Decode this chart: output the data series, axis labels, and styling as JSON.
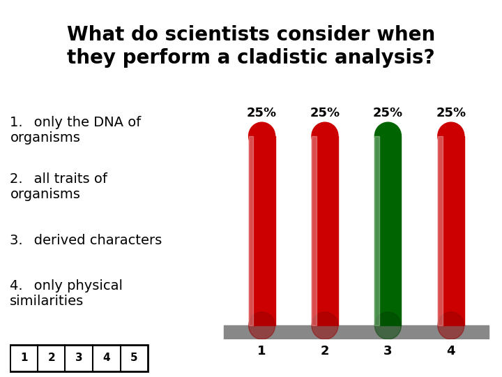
{
  "title_line1": "What do scientists consider when",
  "title_line2": "they perform a cladistic analysis?",
  "options": [
    "only the DNA of\norganisms",
    "all traits of\norganisms",
    "derived characters",
    "only physical\nsimilarities"
  ],
  "categories": [
    "1",
    "2",
    "3",
    "4"
  ],
  "values": [
    25,
    25,
    25,
    25
  ],
  "bar_colors": [
    "#cc0000",
    "#cc0000",
    "#006400",
    "#cc0000"
  ],
  "bar_labels": [
    "25%",
    "25%",
    "25%",
    "25%"
  ],
  "background_color": "#ffffff",
  "text_color": "#000000",
  "title_fontsize": 20,
  "label_fontsize": 13,
  "option_fontsize": 14,
  "nav_labels": [
    "1",
    "2",
    "3",
    "4",
    "5"
  ],
  "platform_color": "#888888"
}
